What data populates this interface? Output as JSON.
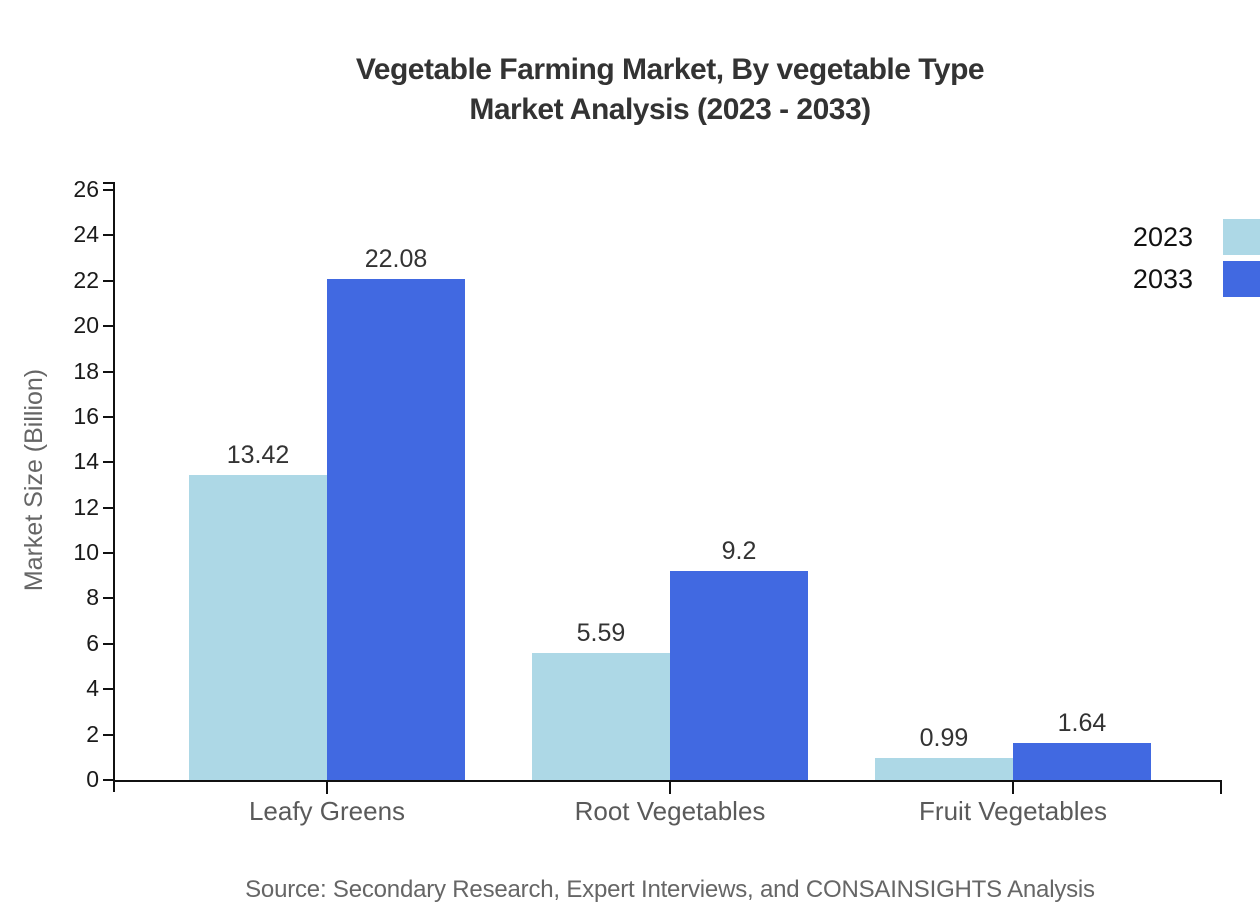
{
  "chart_data": {
    "type": "bar",
    "title_lines": [
      "Vegetable Farming Market, By vegetable Type",
      "Market Analysis (2023 - 2033)"
    ],
    "ylabel": "Market Size (Billion)",
    "categories": [
      "Leafy Greens",
      "Root Vegetables",
      "Fruit Vegetables"
    ],
    "series": [
      {
        "name": "2023",
        "color": "#ADD8E6",
        "values": [
          13.42,
          5.59,
          0.99
        ],
        "value_labels": [
          "13.42",
          "5.59",
          "0.99"
        ]
      },
      {
        "name": "2033",
        "color": "#4169E1",
        "values": [
          22.08,
          9.2,
          1.64
        ],
        "value_labels": [
          "22.08",
          "9.2",
          "1.64"
        ]
      }
    ],
    "ylim": [
      0,
      26
    ],
    "ytick_step": 2,
    "grid": false,
    "legend_position": "top-right",
    "source_note": "Source: Secondary Research, Expert Interviews, and CONSAINSIGHTS Analysis"
  }
}
